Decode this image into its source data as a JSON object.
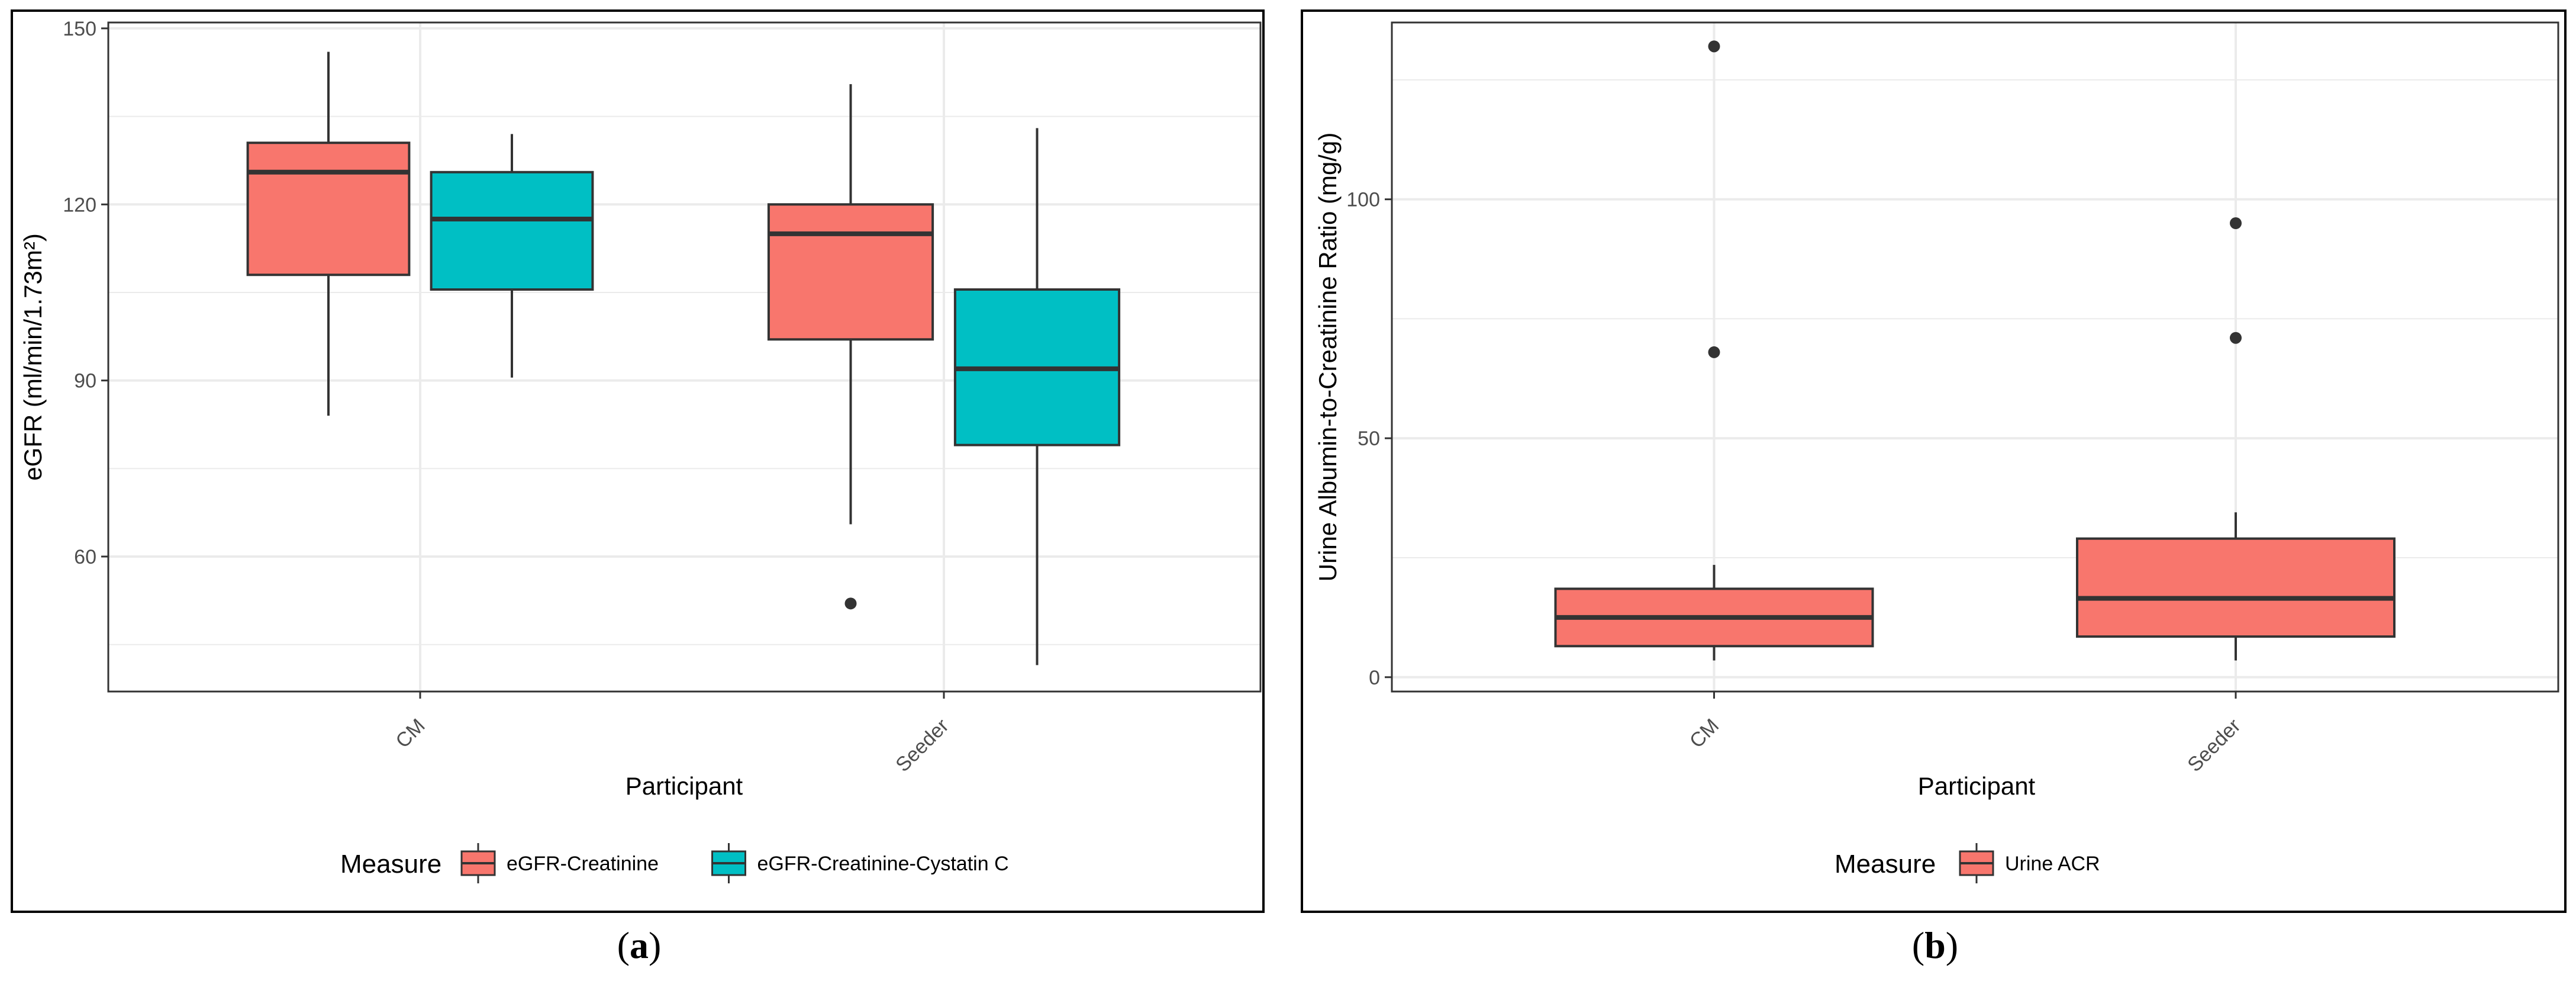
{
  "chart_data": [
    {
      "type": "box",
      "panel_label": "a",
      "xlabel": "Participant",
      "ylabel": "eGFR (ml/min/1.73m²)",
      "ylim": [
        37,
        151
      ],
      "yticks": [
        60,
        90,
        120,
        150
      ],
      "minor_yticks": [
        45,
        75,
        105,
        135
      ],
      "categories": [
        "CM",
        "Seeder"
      ],
      "legend": {
        "title": "Measure",
        "position": "bottom"
      },
      "series": [
        {
          "name": "eGFR-Creatinine",
          "color": "#F8766D",
          "boxes": [
            {
              "category": "CM",
              "whisker_low": 84,
              "q1": 108,
              "median": 125.5,
              "q3": 130.5,
              "whisker_high": 146,
              "outliers": []
            },
            {
              "category": "Seeder",
              "whisker_low": 65.5,
              "q1": 97,
              "median": 115,
              "q3": 120,
              "whisker_high": 140.5,
              "outliers": [
                52
              ]
            }
          ]
        },
        {
          "name": "eGFR-Creatinine-Cystatin C",
          "color": "#00BFC4",
          "boxes": [
            {
              "category": "CM",
              "whisker_low": 90.5,
              "q1": 105.5,
              "median": 117.5,
              "q3": 125.5,
              "whisker_high": 132,
              "outliers": []
            },
            {
              "category": "Seeder",
              "whisker_low": 41.5,
              "q1": 79,
              "median": 92,
              "q3": 105.5,
              "whisker_high": 133,
              "outliers": []
            }
          ]
        }
      ]
    },
    {
      "type": "box",
      "panel_label": "b",
      "xlabel": "Participant",
      "ylabel": "Urine Albumin-to-Creatinine Ratio (mg/g)",
      "ylim": [
        -3,
        137
      ],
      "yticks": [
        0,
        50,
        100
      ],
      "minor_yticks": [
        25,
        75,
        125
      ],
      "categories": [
        "CM",
        "Seeder"
      ],
      "legend": {
        "title": "Measure",
        "position": "bottom"
      },
      "series": [
        {
          "name": "Urine ACR",
          "color": "#F8766D",
          "boxes": [
            {
              "category": "CM",
              "whisker_low": 3.5,
              "q1": 6.5,
              "median": 12.5,
              "q3": 18.5,
              "whisker_high": 23.5,
              "outliers": [
                68,
                132
              ]
            },
            {
              "category": "Seeder",
              "whisker_low": 3.5,
              "q1": 8.5,
              "median": 16.5,
              "q3": 29,
              "whisker_high": 34.5,
              "outliers": [
                71,
                95
              ]
            }
          ]
        }
      ]
    }
  ]
}
